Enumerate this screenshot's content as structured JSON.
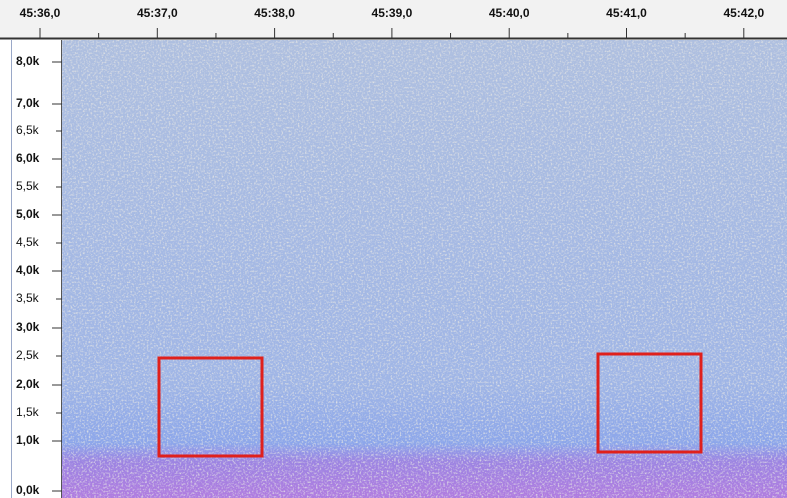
{
  "time_ruler": {
    "labels": [
      "45:36,0",
      "45:37,0",
      "45:38,0",
      "45:39,0",
      "45:40,0",
      "45:41,0",
      "45:42,0"
    ]
  },
  "frequency_axis": {
    "labels": [
      "8,0k",
      "7,0k",
      "6,5k",
      "6,0k",
      "5,5k",
      "5,0k",
      "4,5k",
      "4,0k",
      "3,5k",
      "3,0k",
      "2,5k",
      "2,0k",
      "1,5k",
      "1,0k",
      "0,0k"
    ]
  }
}
